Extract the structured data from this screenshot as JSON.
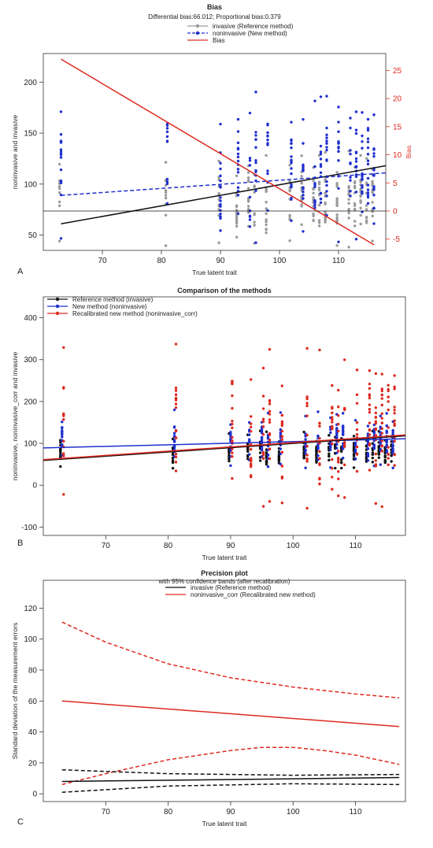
{
  "colors": {
    "black": "#111111",
    "blue": "#1f2fcf",
    "red": "#dd2a20",
    "grey": "#9a9a9a"
  },
  "chart_data": [
    {
      "panel": "A",
      "type": "scatter",
      "title": "Bias",
      "subtitle": "Differential bias:66.012; Proportional bias:0.379",
      "xlabel": "True latent trait",
      "ylabel": "noninvasive and invasive",
      "y2label": "Bias",
      "xlim": [
        60,
        118
      ],
      "ylim": [
        35,
        228
      ],
      "y2lim": [
        -7,
        28
      ],
      "xticks": [
        70,
        80,
        90,
        100,
        110
      ],
      "yticks": [
        50,
        100,
        150,
        200
      ],
      "y2ticks": [
        -5,
        0,
        5,
        10,
        15,
        20,
        25
      ],
      "legend": [
        "invasive (Reference method)",
        "noninvasive (New method)",
        "Bias"
      ],
      "legend_position": "top-center",
      "x_groups": [
        63,
        81,
        90,
        93,
        95,
        96,
        98,
        102,
        104,
        106,
        107,
        108,
        110,
        112,
        113,
        114,
        115,
        116
      ],
      "series": [
        {
          "name": "invasive (Reference method)",
          "kind": "points",
          "color": "grey",
          "y_range": [
            38,
            135
          ]
        },
        {
          "name": "noninvasive (New method)",
          "kind": "points",
          "color": "blue",
          "y_range": [
            42,
            200
          ]
        },
        {
          "name": "invasive (Reference method)",
          "kind": "line",
          "color": "black",
          "x": [
            63,
            118
          ],
          "y": [
            61,
            118
          ]
        },
        {
          "name": "noninvasive (New method)",
          "kind": "line",
          "color": "blue",
          "dash": true,
          "x": [
            63,
            118
          ],
          "y": [
            89,
            111
          ]
        },
        {
          "name": "Bias",
          "kind": "line",
          "color": "red",
          "axis": "right",
          "x": [
            63,
            116
          ],
          "y": [
            27,
            -6
          ]
        },
        {
          "name": "",
          "kind": "hline",
          "color": "black",
          "axis": "right",
          "y": 0
        }
      ]
    },
    {
      "panel": "B",
      "type": "scatter",
      "title": "Comparison of the methods",
      "xlabel": "True latent trait",
      "ylabel": "noninvasive, noninvasive_corr and invasive",
      "xlim": [
        60,
        118
      ],
      "ylim": [
        -120,
        450
      ],
      "xticks": [
        70,
        80,
        90,
        100,
        110
      ],
      "yticks": [
        -100,
        0,
        100,
        200,
        300,
        400
      ],
      "legend": [
        "Reference method (invasive)",
        "New method (noninvasive)",
        "Recalibrated new method (noninvasive_corr)"
      ],
      "legend_position": "top-left",
      "x_groups": [
        63,
        81,
        90,
        93,
        95,
        96,
        98,
        102,
        104,
        106,
        107,
        108,
        110,
        112,
        113,
        114,
        115,
        116
      ],
      "series": [
        {
          "name": "Reference method (invasive)",
          "kind": "points",
          "color": "black",
          "y_range": [
            40,
            130
          ]
        },
        {
          "name": "New method (noninvasive)",
          "kind": "points",
          "color": "blue",
          "y_range": [
            40,
            180
          ]
        },
        {
          "name": "Recalibrated new method (noninvasive_corr)",
          "kind": "points",
          "color": "red",
          "y_range": [
            -65,
            350
          ]
        },
        {
          "name": "New method (noninvasive)",
          "kind": "line",
          "color": "blue",
          "x": [
            60,
            118
          ],
          "y": [
            89,
            111
          ]
        },
        {
          "name": "Reference method (invasive)",
          "kind": "line",
          "color": "black",
          "x": [
            60,
            118
          ],
          "y": [
            59,
            118
          ]
        },
        {
          "name": "Recalibrated new method (noninvasive_corr)",
          "kind": "line",
          "color": "red",
          "x": [
            60,
            118
          ],
          "y": [
            61,
            120
          ]
        }
      ]
    },
    {
      "panel": "C",
      "type": "line",
      "title": "Precision plot",
      "subtitle": "with 95% confidence bands (after recalibration)",
      "xlabel": "True latent trait",
      "ylabel": "Standard deviation of the measurement errors",
      "xlim": [
        60,
        118
      ],
      "ylim": [
        -5,
        138
      ],
      "xticks": [
        70,
        80,
        90,
        100,
        110
      ],
      "yticks": [
        0,
        20,
        40,
        60,
        80,
        100,
        120
      ],
      "legend": [
        "invasive (Reference method)",
        "noninvasive_corr (Recalibrated new method)"
      ],
      "legend_position": "top-center",
      "series": [
        {
          "name": "noninvasive_corr (Recalibrated new method)",
          "kind": "line",
          "color": "red",
          "x": [
            63,
            117
          ],
          "y": [
            60,
            43.5
          ]
        },
        {
          "name": "noninvasive_corr (Recalibrated new method)",
          "kind": "line",
          "color": "red",
          "dash": true,
          "x": [
            63,
            70,
            80,
            90,
            100,
            110,
            117
          ],
          "y": [
            111,
            98,
            84,
            75,
            69,
            64.5,
            62
          ]
        },
        {
          "name": "noninvasive_corr (Recalibrated new method)",
          "kind": "line",
          "color": "red",
          "dash": true,
          "x": [
            63,
            70,
            80,
            90,
            95,
            100,
            105,
            110,
            117
          ],
          "y": [
            6,
            13,
            22,
            28,
            30,
            30,
            28,
            25,
            19
          ]
        },
        {
          "name": "invasive (Reference method)",
          "kind": "line",
          "color": "black",
          "x": [
            63,
            117
          ],
          "y": [
            8,
            10.5
          ]
        },
        {
          "name": "invasive (Reference method)",
          "kind": "line",
          "color": "black",
          "dash": true,
          "x": [
            63,
            80,
            100,
            117
          ],
          "y": [
            15.5,
            13,
            12,
            12.5
          ]
        },
        {
          "name": "invasive (Reference method)",
          "kind": "line",
          "color": "black",
          "dash": true,
          "x": [
            63,
            80,
            100,
            117
          ],
          "y": [
            1,
            5,
            6.5,
            6
          ]
        }
      ]
    }
  ]
}
